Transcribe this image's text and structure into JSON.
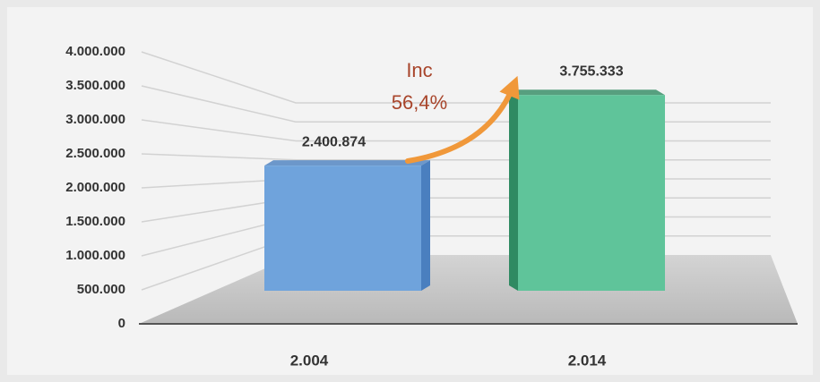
{
  "chart_data": {
    "type": "bar3d",
    "categories": [
      "2.004",
      "2.014"
    ],
    "series": [
      {
        "name": null,
        "colors": [
          "#6fa3dc",
          "#5fc49a"
        ],
        "side_colors": [
          "#4a7fbf",
          "#2f8a62"
        ],
        "values": [
          2400874,
          3755333
        ],
        "value_labels": [
          "2.400.874",
          "3.755.333"
        ]
      }
    ],
    "ylim": [
      0,
      4000000
    ],
    "yticks": [
      0,
      {
        "value": 500000,
        "label": "500.000"
      },
      {
        "value": 1000000,
        "label": "1.000.000"
      },
      {
        "value": 1500000,
        "label": "1.500.000"
      },
      {
        "value": 2000000,
        "label": "2.000.000"
      },
      {
        "value": 2500000,
        "label": "2.500.000"
      },
      {
        "value": 3000000,
        "label": "3.000.000"
      },
      {
        "value": 3500000,
        "label": "3.500.000"
      },
      {
        "value": 4000000,
        "label": "4.000.000"
      }
    ],
    "grid": true,
    "annotation": {
      "lines": [
        "Inc",
        "56,4%"
      ],
      "color": "#a8452b",
      "arrow_color": "#f0983a"
    }
  }
}
